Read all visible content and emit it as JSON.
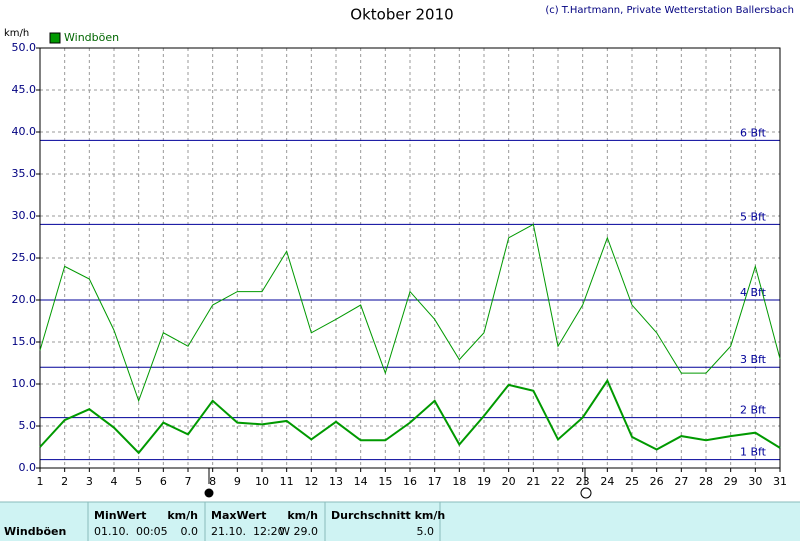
{
  "chart_data": {
    "type": "line",
    "title": "Oktober 2010",
    "credit": "(c) T.Hartmann, Private Wetterstation Ballersbach",
    "y_label": "km/h",
    "x": [
      1,
      2,
      3,
      4,
      5,
      6,
      7,
      8,
      9,
      10,
      11,
      12,
      13,
      14,
      15,
      16,
      17,
      18,
      19,
      20,
      21,
      22,
      23,
      24,
      25,
      26,
      27,
      28,
      29,
      30,
      31
    ],
    "xlim": [
      1,
      31
    ],
    "xticks": [
      1,
      2,
      3,
      4,
      5,
      6,
      7,
      8,
      9,
      10,
      11,
      12,
      13,
      14,
      15,
      16,
      17,
      18,
      19,
      20,
      21,
      22,
      23,
      24,
      25,
      26,
      27,
      28,
      29,
      30,
      31
    ],
    "ylim": [
      0,
      50
    ],
    "yticks": [
      {
        "value": 0,
        "label": "0.0"
      },
      {
        "value": 5,
        "label": "5.0"
      },
      {
        "value": 10,
        "label": "10.0"
      },
      {
        "value": 15,
        "label": "15.0"
      },
      {
        "value": 20,
        "label": "20.0"
      },
      {
        "value": 25,
        "label": "25.0"
      },
      {
        "value": 30,
        "label": "30.0"
      },
      {
        "value": 35,
        "label": "35.0"
      },
      {
        "value": 40,
        "label": "40.0"
      },
      {
        "value": 45,
        "label": "45.0"
      },
      {
        "value": 50,
        "label": "50.0"
      }
    ],
    "grid": true,
    "legend": "top-left",
    "series": [
      {
        "name": "Windböen",
        "color": "#009900",
        "width": 2,
        "values": [
          2.5,
          5.7,
          7.0,
          4.8,
          1.8,
          5.4,
          4.0,
          8.0,
          5.4,
          5.2,
          5.6,
          3.4,
          5.5,
          3.3,
          3.3,
          5.4,
          8.0,
          2.8,
          6.2,
          9.9,
          9.2,
          3.4,
          6.0,
          10.4,
          3.7,
          2.2,
          3.8,
          3.3,
          3.8,
          4.2,
          2.4
        ]
      },
      {
        "color": "#009900",
        "width": 1,
        "values": [
          14.0,
          24.0,
          22.5,
          16.4,
          8.0,
          16.1,
          14.5,
          19.4,
          21.0,
          21.0,
          25.8,
          16.1,
          17.7,
          19.4,
          11.3,
          21.0,
          17.7,
          12.9,
          16.1,
          27.4,
          29.0,
          14.5,
          19.4,
          27.4,
          19.4,
          16.1,
          11.3,
          11.3,
          14.5,
          24.0,
          13.0
        ]
      }
    ],
    "reference_color": "#000099",
    "reference_lines": [
      {
        "value": 1,
        "label": "1 Bft"
      },
      {
        "value": 6,
        "label": "2 Bft"
      },
      {
        "value": 12,
        "label": "3 Bft"
      },
      {
        "value": 20,
        "label": "4 Bft"
      },
      {
        "value": 29,
        "label": "5 Bft"
      },
      {
        "value": 39,
        "label": "6 Bft"
      }
    ]
  },
  "table": {
    "row_label": "Windböen",
    "min": {
      "header": "MinWert",
      "unit": "km/h",
      "time": "01.10.  00:05",
      "value": "0.0"
    },
    "max": {
      "header": "MaxWert",
      "unit": "km/h",
      "time": "21.10.  12:20",
      "value": "W 29.0"
    },
    "avg": {
      "header": "Durchschnitt km/h",
      "value": "5.0"
    }
  }
}
